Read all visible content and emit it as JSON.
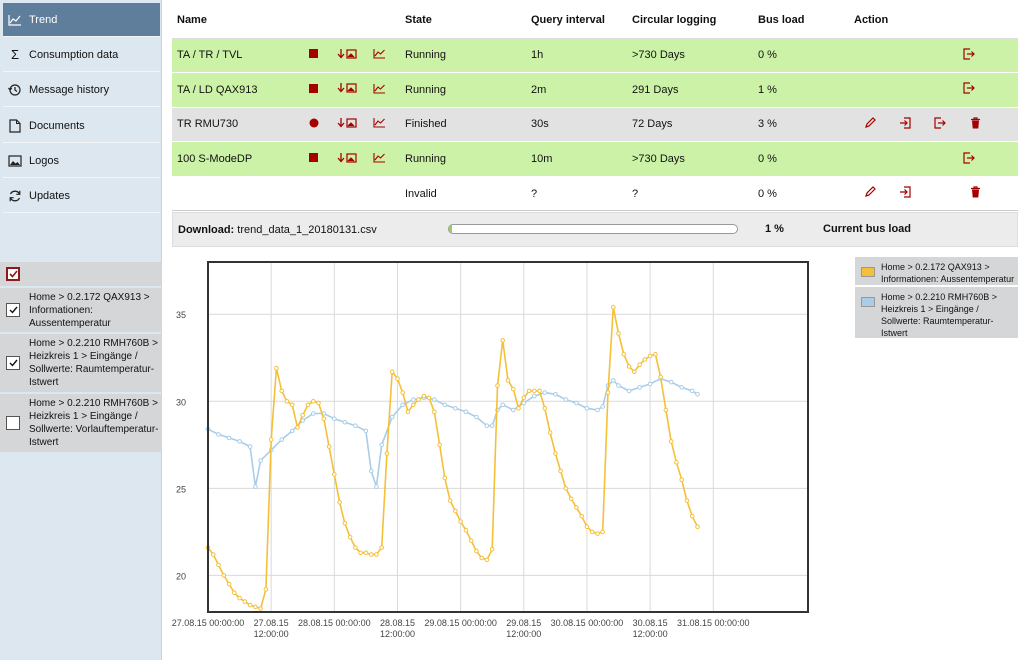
{
  "nav": [
    {
      "label": "Trend",
      "icon": "trend-icon",
      "active": true
    },
    {
      "label": "Consumption data",
      "icon": "sigma-icon"
    },
    {
      "label": "Message history",
      "icon": "history-icon"
    },
    {
      "label": "Documents",
      "icon": "document-icon"
    },
    {
      "label": "Logos",
      "icon": "image-icon"
    },
    {
      "label": "Updates",
      "icon": "refresh-icon"
    }
  ],
  "series_panel": {
    "items": [
      {
        "label": "Home > 0.2.172 QAX913 > Informationen: Aussentemperatur",
        "checked": true
      },
      {
        "label": "Home > 0.2.210 RMH760B > Heizkreis 1 > Eingänge / Sollwerte: Raumtemperatur-Istwert",
        "checked": true
      },
      {
        "label": "Home > 0.2.210 RMH760B > Heizkreis 1 > Eingänge / Sollwerte: Vorlauftemperatur-Istwert",
        "checked": false
      }
    ]
  },
  "table": {
    "headers": {
      "name": "Name",
      "state": "State",
      "interval": "Query interval",
      "logging": "Circular logging",
      "bus": "Bus load",
      "action": "Action"
    },
    "rows": [
      {
        "name": "TA / TR / TVL",
        "state": "Running",
        "interval": "1h",
        "logging": ">730 Days",
        "bus": "0 %"
      },
      {
        "name": "TA / LD QAX913",
        "state": "Running",
        "interval": "2m",
        "logging": "291 Days",
        "bus": "1 %"
      },
      {
        "name": "TR RMU730",
        "state": "Finished",
        "interval": "30s",
        "logging": "72 Days",
        "bus": "3 %"
      },
      {
        "name": "100 S-ModeDP",
        "state": "Running",
        "interval": "10m",
        "logging": ">730 Days",
        "bus": "0 %"
      },
      {
        "name": "",
        "state": "Invalid",
        "interval": "?",
        "logging": "?",
        "bus": "0 %"
      }
    ]
  },
  "download": {
    "label": "Download:",
    "file": "trend_data_1_20180131.csv",
    "progress": 1,
    "percent": "1 %",
    "bus_label": "Current bus load"
  },
  "colors": {
    "series_outdoor": "#f5c038",
    "series_room": "#a9cde8",
    "running": "#ccf2a8",
    "finished": "#e2e2e2",
    "accent": "#8b1a1a"
  },
  "legend": [
    {
      "label": "Home > 0.2.172 QAX913 > Informationen: Aussentemperatur",
      "color": "#f5c038"
    },
    {
      "label": "Home > 0.2.210 RMH760B > Heizkreis 1 > Eingänge / Sollwerte: Raumtemperatur-Istwert",
      "color": "#a9cde8"
    }
  ],
  "chart_data": {
    "type": "line",
    "title": "",
    "xlabel": "",
    "ylabel": "",
    "ylim": [
      17.9,
      38
    ],
    "xlim_hours": [
      0,
      114
    ],
    "yticks": [
      20,
      25,
      30,
      35
    ],
    "xticks": [
      {
        "h": 0,
        "label": [
          "27.08.15 00:00:00"
        ]
      },
      {
        "h": 12,
        "label": [
          "27.08.15",
          "12:00:00"
        ]
      },
      {
        "h": 24,
        "label": [
          "28.08.15 00:00:00"
        ]
      },
      {
        "h": 36,
        "label": [
          "28.08.15",
          "12:00:00"
        ]
      },
      {
        "h": 48,
        "label": [
          "29.08.15 00:00:00"
        ]
      },
      {
        "h": 60,
        "label": [
          "29.08.15",
          "12:00:00"
        ]
      },
      {
        "h": 72,
        "label": [
          "30.08.15 00:00:00"
        ]
      },
      {
        "h": 84,
        "label": [
          "30.08.15",
          "12:00:00"
        ]
      },
      {
        "h": 96,
        "label": [
          "31.08.15 00:00:00"
        ]
      }
    ],
    "series": [
      {
        "name": "Home > 0.2.172 QAX913 > Informationen: Aussentemperatur",
        "color": "#f5c038",
        "points": [
          [
            0,
            21.6
          ],
          [
            1,
            21.2
          ],
          [
            2,
            20.6
          ],
          [
            3,
            20.0
          ],
          [
            4,
            19.5
          ],
          [
            5,
            19.0
          ],
          [
            6,
            18.7
          ],
          [
            7,
            18.5
          ],
          [
            8,
            18.3
          ],
          [
            9,
            18.2
          ],
          [
            10,
            18.1
          ],
          [
            11,
            19.2
          ],
          [
            12,
            27.8
          ],
          [
            13,
            31.9
          ],
          [
            14,
            30.6
          ],
          [
            15,
            30.0
          ],
          [
            16,
            29.8
          ],
          [
            17,
            28.5
          ],
          [
            18,
            29.2
          ],
          [
            19,
            29.8
          ],
          [
            20,
            30.0
          ],
          [
            21,
            29.9
          ],
          [
            22,
            29.0
          ],
          [
            23,
            27.4
          ],
          [
            24,
            25.8
          ],
          [
            25,
            24.2
          ],
          [
            26,
            23.0
          ],
          [
            27,
            22.2
          ],
          [
            28,
            21.6
          ],
          [
            29,
            21.3
          ],
          [
            30,
            21.3
          ],
          [
            31,
            21.2
          ],
          [
            32,
            21.2
          ],
          [
            33,
            21.6
          ],
          [
            34,
            27.0
          ],
          [
            35,
            31.7
          ],
          [
            36,
            31.3
          ],
          [
            37,
            30.5
          ],
          [
            38,
            29.4
          ],
          [
            39,
            29.8
          ],
          [
            40,
            30.1
          ],
          [
            41,
            30.3
          ],
          [
            42,
            30.2
          ],
          [
            43,
            29.4
          ],
          [
            44,
            27.5
          ],
          [
            45,
            25.6
          ],
          [
            46,
            24.3
          ],
          [
            47,
            23.7
          ],
          [
            48,
            23.1
          ],
          [
            49,
            22.6
          ],
          [
            50,
            22.0
          ],
          [
            51,
            21.4
          ],
          [
            52,
            21.0
          ],
          [
            53,
            20.9
          ],
          [
            54,
            21.5
          ],
          [
            55,
            30.9
          ],
          [
            56,
            33.5
          ],
          [
            57,
            31.2
          ],
          [
            58,
            30.7
          ],
          [
            59,
            29.6
          ],
          [
            60,
            30.2
          ],
          [
            61,
            30.6
          ],
          [
            62,
            30.6
          ],
          [
            63,
            30.6
          ],
          [
            64,
            29.6
          ],
          [
            65,
            28.2
          ],
          [
            66,
            27.0
          ],
          [
            67,
            26.0
          ],
          [
            68,
            25.0
          ],
          [
            69,
            24.4
          ],
          [
            70,
            23.9
          ],
          [
            71,
            23.4
          ],
          [
            72,
            22.8
          ],
          [
            73,
            22.5
          ],
          [
            74,
            22.4
          ],
          [
            75,
            22.5
          ],
          [
            76,
            30.5
          ],
          [
            77,
            35.4
          ],
          [
            78,
            33.9
          ],
          [
            79,
            32.7
          ],
          [
            80,
            32.0
          ],
          [
            81,
            31.7
          ],
          [
            82,
            32.1
          ],
          [
            83,
            32.4
          ],
          [
            84,
            32.6
          ],
          [
            85,
            32.7
          ],
          [
            86,
            31.4
          ],
          [
            87,
            29.5
          ],
          [
            88,
            27.7
          ],
          [
            89,
            26.5
          ],
          [
            90,
            25.5
          ],
          [
            91,
            24.3
          ],
          [
            92,
            23.4
          ],
          [
            93,
            22.8
          ]
        ]
      },
      {
        "name": "Home > 0.2.210 RMH760B > Heizkreis 1 > Eingänge / Sollwerte: Raumtemperatur-Istwert",
        "color": "#a9cde8",
        "points": [
          [
            0,
            28.4
          ],
          [
            2,
            28.1
          ],
          [
            4,
            27.9
          ],
          [
            6,
            27.7
          ],
          [
            8,
            27.4
          ],
          [
            9,
            25.1
          ],
          [
            10,
            26.6
          ],
          [
            12,
            27.2
          ],
          [
            14,
            27.8
          ],
          [
            16,
            28.3
          ],
          [
            18,
            28.9
          ],
          [
            20,
            29.3
          ],
          [
            22,
            29.3
          ],
          [
            24,
            29.0
          ],
          [
            26,
            28.8
          ],
          [
            28,
            28.6
          ],
          [
            30,
            28.3
          ],
          [
            31,
            26.0
          ],
          [
            32,
            25.1
          ],
          [
            33,
            27.5
          ],
          [
            35,
            29.1
          ],
          [
            37,
            29.8
          ],
          [
            39,
            30.1
          ],
          [
            41,
            30.2
          ],
          [
            43,
            30.1
          ],
          [
            45,
            29.8
          ],
          [
            47,
            29.6
          ],
          [
            49,
            29.4
          ],
          [
            51,
            29.1
          ],
          [
            53,
            28.6
          ],
          [
            54,
            28.6
          ],
          [
            55,
            29.5
          ],
          [
            56,
            29.8
          ],
          [
            58,
            29.5
          ],
          [
            60,
            29.9
          ],
          [
            62,
            30.3
          ],
          [
            64,
            30.5
          ],
          [
            66,
            30.4
          ],
          [
            68,
            30.1
          ],
          [
            70,
            29.9
          ],
          [
            72,
            29.6
          ],
          [
            74,
            29.5
          ],
          [
            75,
            29.7
          ],
          [
            76,
            30.9
          ],
          [
            77,
            31.2
          ],
          [
            78,
            30.9
          ],
          [
            80,
            30.6
          ],
          [
            82,
            30.8
          ],
          [
            84,
            31.0
          ],
          [
            86,
            31.3
          ],
          [
            88,
            31.1
          ],
          [
            90,
            30.8
          ],
          [
            92,
            30.6
          ],
          [
            93,
            30.4
          ]
        ]
      }
    ]
  }
}
